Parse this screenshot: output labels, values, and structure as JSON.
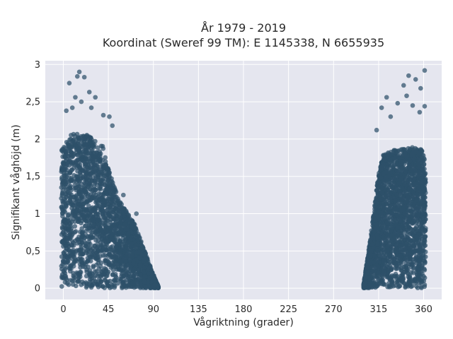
{
  "chart_data": {
    "type": "scatter",
    "title_line1": "År 1979 - 2019",
    "title_line2": "Koordinat (Sweref 99 TM): E 1145338, N 6655935",
    "xlabel": "Vågriktning (grader)",
    "ylabel": "Signifikant våghöjd (m)",
    "xlim": [
      -18,
      378
    ],
    "ylim": [
      -0.15,
      3.05
    ],
    "xticks": [
      0,
      45,
      90,
      135,
      180,
      225,
      270,
      315,
      360
    ],
    "xtick_labels": [
      "0",
      "45",
      "90",
      "135",
      "180",
      "225",
      "270",
      "315",
      "360"
    ],
    "yticks": [
      0,
      0.5,
      1,
      1.5,
      2,
      2.5,
      3
    ],
    "ytick_labels": [
      "0",
      "0,5",
      "1",
      "1,5",
      "2",
      "2,5",
      "3"
    ],
    "grid": true,
    "marker_color": "#2e5069",
    "background_color": "#e5e6ef",
    "clusters": [
      {
        "direction_range": [
          -2,
          95
        ],
        "envelope": [
          [
            -2,
            1.85
          ],
          [
            10,
            2.1
          ],
          [
            25,
            2.05
          ],
          [
            40,
            1.9
          ],
          [
            45,
            1.6
          ],
          [
            55,
            1.2
          ],
          [
            70,
            0.9
          ],
          [
            80,
            0.55
          ],
          [
            88,
            0.25
          ],
          [
            95,
            0.02
          ]
        ]
      },
      {
        "direction_range": [
          300,
          362
        ],
        "envelope": [
          [
            300,
            0.05
          ],
          [
            305,
            0.5
          ],
          [
            310,
            1.0
          ],
          [
            315,
            1.55
          ],
          [
            320,
            1.8
          ],
          [
            330,
            1.85
          ],
          [
            345,
            1.9
          ],
          [
            360,
            1.85
          ],
          [
            362,
            1.6
          ]
        ]
      }
    ],
    "outliers": [
      {
        "x": 16,
        "y": 2.9
      },
      {
        "x": 21,
        "y": 2.83
      },
      {
        "x": 6,
        "y": 2.75
      },
      {
        "x": 14,
        "y": 2.84
      },
      {
        "x": 26,
        "y": 2.63
      },
      {
        "x": 12,
        "y": 2.56
      },
      {
        "x": 32,
        "y": 2.56
      },
      {
        "x": 18,
        "y": 2.5
      },
      {
        "x": 9,
        "y": 2.42
      },
      {
        "x": 28,
        "y": 2.42
      },
      {
        "x": 40,
        "y": 2.32
      },
      {
        "x": 46,
        "y": 2.3
      },
      {
        "x": 3,
        "y": 2.38
      },
      {
        "x": 49,
        "y": 2.18
      },
      {
        "x": 60,
        "y": 1.25
      },
      {
        "x": 73,
        "y": 1.0
      },
      {
        "x": 361,
        "y": 2.92
      },
      {
        "x": 345,
        "y": 2.85
      },
      {
        "x": 352,
        "y": 2.8
      },
      {
        "x": 340,
        "y": 2.72
      },
      {
        "x": 357,
        "y": 2.68
      },
      {
        "x": 323,
        "y": 2.56
      },
      {
        "x": 343,
        "y": 2.58
      },
      {
        "x": 334,
        "y": 2.48
      },
      {
        "x": 349,
        "y": 2.45
      },
      {
        "x": 318,
        "y": 2.42
      },
      {
        "x": 356,
        "y": 2.36
      },
      {
        "x": 327,
        "y": 2.3
      },
      {
        "x": 361,
        "y": 2.44
      },
      {
        "x": 313,
        "y": 2.12
      }
    ]
  }
}
